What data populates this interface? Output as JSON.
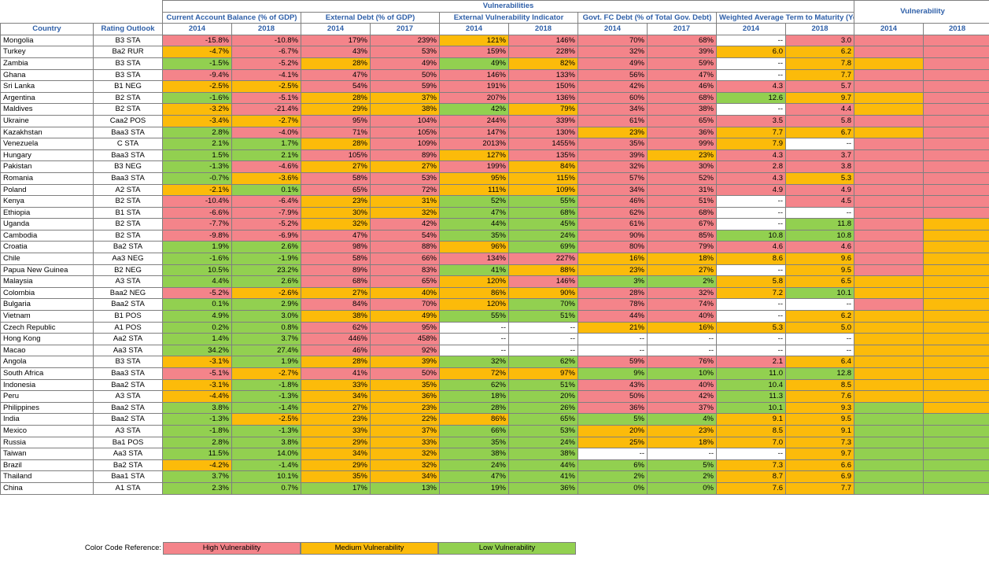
{
  "header": {
    "group_title": "Vulnerabilities",
    "vuln_title": "Vulnerability",
    "country_label": "Country",
    "rating_label": "Rating Outlook",
    "metrics": [
      {
        "name": "Current Account Balance (% of GDP)",
        "years": [
          "2014",
          "2018"
        ]
      },
      {
        "name": "External Debt (% of GDP)",
        "years": [
          "2014",
          "2017"
        ]
      },
      {
        "name": "External Vulnerability Indicator",
        "years": [
          "2014",
          "2018"
        ]
      },
      {
        "name": "Govt. FC Debt (% of Total Gov. Debt)",
        "years": [
          "2014",
          "2017"
        ]
      },
      {
        "name": "Weighted Average Term to Maturity (Years)",
        "years": [
          "2014",
          "2018"
        ]
      }
    ],
    "vuln_years": [
      "2014",
      "2018"
    ]
  },
  "colors": {
    "H": "#f4848a",
    "M": "#fcbb0a",
    "L": "#92d050",
    "W": "#ffffff"
  },
  "rows": [
    {
      "country": "Mongolia",
      "rating": "B3 STA",
      "vals": [
        "-15.8%",
        "-10.8%",
        "179%",
        "239%",
        "121%",
        "146%",
        "70%",
        "68%",
        "--",
        "3.0"
      ],
      "col": [
        "H",
        "H",
        "H",
        "H",
        "M",
        "H",
        "H",
        "H",
        "W",
        "H",
        "H",
        "H"
      ]
    },
    {
      "country": "Turkey",
      "rating": "Ba2 RUR",
      "vals": [
        "-4.7%",
        "-6.7%",
        "43%",
        "53%",
        "159%",
        "228%",
        "32%",
        "39%",
        "6.0",
        "6.2"
      ],
      "col": [
        "M",
        "H",
        "H",
        "H",
        "H",
        "H",
        "H",
        "H",
        "M",
        "M",
        "H",
        "H"
      ]
    },
    {
      "country": "Zambia",
      "rating": "B3 STA",
      "vals": [
        "-1.5%",
        "-5.2%",
        "28%",
        "49%",
        "49%",
        "82%",
        "49%",
        "59%",
        "--",
        "7.8"
      ],
      "col": [
        "L",
        "H",
        "M",
        "H",
        "L",
        "M",
        "H",
        "H",
        "W",
        "M",
        "M",
        "H"
      ]
    },
    {
      "country": "Ghana",
      "rating": "B3 STA",
      "vals": [
        "-9.4%",
        "-4.1%",
        "47%",
        "50%",
        "146%",
        "133%",
        "56%",
        "47%",
        "--",
        "7.7"
      ],
      "col": [
        "H",
        "H",
        "H",
        "H",
        "H",
        "H",
        "H",
        "H",
        "W",
        "M",
        "H",
        "H"
      ]
    },
    {
      "country": "Sri Lanka",
      "rating": "B1 NEG",
      "vals": [
        "-2.5%",
        "-2.5%",
        "54%",
        "59%",
        "191%",
        "150%",
        "42%",
        "46%",
        "4.3",
        "5.7"
      ],
      "col": [
        "M",
        "M",
        "H",
        "H",
        "H",
        "H",
        "H",
        "H",
        "H",
        "H",
        "H",
        "H"
      ]
    },
    {
      "country": "Argentina",
      "rating": "B2 STA",
      "vals": [
        "-1.6%",
        "-5.1%",
        "28%",
        "37%",
        "207%",
        "136%",
        "60%",
        "68%",
        "12.6",
        "9.7"
      ],
      "col": [
        "L",
        "H",
        "M",
        "M",
        "H",
        "H",
        "H",
        "H",
        "L",
        "M",
        "M",
        "H"
      ]
    },
    {
      "country": "Maldives",
      "rating": "B2 STA",
      "vals": [
        "-3.2%",
        "-21.4%",
        "29%",
        "38%",
        "42%",
        "79%",
        "34%",
        "38%",
        "--",
        "4.4"
      ],
      "col": [
        "M",
        "H",
        "M",
        "M",
        "L",
        "M",
        "H",
        "H",
        "W",
        "H",
        "M",
        "H"
      ]
    },
    {
      "country": "Ukraine",
      "rating": "Caa2 POS",
      "vals": [
        "-3.4%",
        "-2.7%",
        "95%",
        "104%",
        "244%",
        "339%",
        "61%",
        "65%",
        "3.5",
        "5.8"
      ],
      "col": [
        "M",
        "M",
        "H",
        "H",
        "H",
        "H",
        "H",
        "H",
        "H",
        "H",
        "H",
        "H"
      ]
    },
    {
      "country": "Kazakhstan",
      "rating": "Baa3 STA",
      "vals": [
        "2.8%",
        "-4.0%",
        "71%",
        "105%",
        "147%",
        "130%",
        "23%",
        "36%",
        "7.7",
        "6.7"
      ],
      "col": [
        "L",
        "H",
        "H",
        "H",
        "H",
        "H",
        "M",
        "H",
        "M",
        "M",
        "M",
        "H"
      ]
    },
    {
      "country": "Venezuela",
      "rating": "C STA",
      "vals": [
        "2.1%",
        "1.7%",
        "28%",
        "109%",
        "2013%",
        "1455%",
        "35%",
        "99%",
        "7.9",
        "--"
      ],
      "col": [
        "L",
        "L",
        "M",
        "H",
        "H",
        "H",
        "H",
        "H",
        "M",
        "W",
        "H",
        "H"
      ]
    },
    {
      "country": "Hungary",
      "rating": "Baa3 STA",
      "vals": [
        "1.5%",
        "2.1%",
        "105%",
        "89%",
        "127%",
        "135%",
        "39%",
        "23%",
        "4.3",
        "3.7"
      ],
      "col": [
        "L",
        "L",
        "H",
        "H",
        "M",
        "H",
        "H",
        "M",
        "H",
        "H",
        "H",
        "H"
      ]
    },
    {
      "country": "Pakistan",
      "rating": "B3 NEG",
      "vals": [
        "-1.3%",
        "-4.6%",
        "27%",
        "27%",
        "199%",
        "84%",
        "32%",
        "30%",
        "2.8",
        "3.8"
      ],
      "col": [
        "L",
        "H",
        "M",
        "M",
        "H",
        "M",
        "H",
        "H",
        "H",
        "H",
        "H",
        "H"
      ]
    },
    {
      "country": "Romania",
      "rating": "Baa3 STA",
      "vals": [
        "-0.7%",
        "-3.6%",
        "58%",
        "53%",
        "95%",
        "115%",
        "57%",
        "52%",
        "4.3",
        "5.3"
      ],
      "col": [
        "L",
        "M",
        "H",
        "H",
        "M",
        "M",
        "H",
        "H",
        "H",
        "M",
        "H",
        "H"
      ]
    },
    {
      "country": "Poland",
      "rating": "A2 STA",
      "vals": [
        "-2.1%",
        "0.1%",
        "65%",
        "72%",
        "111%",
        "109%",
        "34%",
        "31%",
        "4.9",
        "4.9"
      ],
      "col": [
        "M",
        "L",
        "H",
        "H",
        "M",
        "M",
        "H",
        "H",
        "H",
        "H",
        "H",
        "H"
      ]
    },
    {
      "country": "Kenya",
      "rating": "B2 STA",
      "vals": [
        "-10.4%",
        "-6.4%",
        "23%",
        "31%",
        "52%",
        "55%",
        "46%",
        "51%",
        "--",
        "4.5"
      ],
      "col": [
        "H",
        "H",
        "M",
        "M",
        "L",
        "L",
        "H",
        "H",
        "W",
        "H",
        "H",
        "H"
      ]
    },
    {
      "country": "Ethiopia",
      "rating": "B1 STA",
      "vals": [
        "-6.6%",
        "-7.9%",
        "30%",
        "32%",
        "47%",
        "68%",
        "62%",
        "68%",
        "--",
        "--"
      ],
      "col": [
        "H",
        "H",
        "M",
        "M",
        "L",
        "L",
        "H",
        "H",
        "W",
        "W",
        "H",
        "H"
      ]
    },
    {
      "country": "Uganda",
      "rating": "B2 STA",
      "vals": [
        "-7.7%",
        "-5.2%",
        "32%",
        "42%",
        "44%",
        "45%",
        "61%",
        "67%",
        "--",
        "11.8"
      ],
      "col": [
        "H",
        "H",
        "M",
        "H",
        "L",
        "L",
        "H",
        "H",
        "W",
        "L",
        "H",
        "M"
      ]
    },
    {
      "country": "Cambodia",
      "rating": "B2 STA",
      "vals": [
        "-9.8%",
        "-6.9%",
        "47%",
        "54%",
        "35%",
        "24%",
        "90%",
        "85%",
        "10.8",
        "10.8"
      ],
      "col": [
        "H",
        "H",
        "H",
        "H",
        "L",
        "L",
        "H",
        "H",
        "L",
        "L",
        "H",
        "M"
      ]
    },
    {
      "country": "Croatia",
      "rating": "Ba2 STA",
      "vals": [
        "1.9%",
        "2.6%",
        "98%",
        "88%",
        "96%",
        "69%",
        "80%",
        "79%",
        "4.6",
        "4.6"
      ],
      "col": [
        "L",
        "L",
        "H",
        "H",
        "M",
        "L",
        "H",
        "H",
        "H",
        "H",
        "H",
        "M"
      ]
    },
    {
      "country": "Chile",
      "rating": "Aa3 NEG",
      "vals": [
        "-1.6%",
        "-1.9%",
        "58%",
        "66%",
        "134%",
        "227%",
        "16%",
        "18%",
        "8.6",
        "9.6"
      ],
      "col": [
        "L",
        "L",
        "H",
        "H",
        "H",
        "H",
        "M",
        "M",
        "M",
        "M",
        "H",
        "M"
      ]
    },
    {
      "country": "Papua New Guinea",
      "rating": "B2 NEG",
      "vals": [
        "10.5%",
        "23.2%",
        "89%",
        "83%",
        "41%",
        "88%",
        "23%",
        "27%",
        "--",
        "9.5"
      ],
      "col": [
        "L",
        "L",
        "H",
        "H",
        "L",
        "M",
        "M",
        "M",
        "W",
        "M",
        "H",
        "M"
      ]
    },
    {
      "country": "Malaysia",
      "rating": "A3 STA",
      "vals": [
        "4.4%",
        "2.6%",
        "68%",
        "65%",
        "120%",
        "146%",
        "3%",
        "2%",
        "5.8",
        "6.5"
      ],
      "col": [
        "L",
        "L",
        "H",
        "H",
        "M",
        "H",
        "L",
        "L",
        "M",
        "M",
        "M",
        "M"
      ]
    },
    {
      "country": "Colombia",
      "rating": "Baa2 NEG",
      "vals": [
        "-5.2%",
        "-2.6%",
        "27%",
        "40%",
        "86%",
        "90%",
        "28%",
        "32%",
        "7.2",
        "10.1"
      ],
      "col": [
        "H",
        "M",
        "M",
        "M",
        "M",
        "M",
        "H",
        "H",
        "M",
        "L",
        "M",
        "M"
      ]
    },
    {
      "country": "Bulgaria",
      "rating": "Baa2 STA",
      "vals": [
        "0.1%",
        "2.9%",
        "84%",
        "70%",
        "120%",
        "70%",
        "78%",
        "74%",
        "--",
        "--"
      ],
      "col": [
        "L",
        "L",
        "H",
        "H",
        "M",
        "L",
        "H",
        "H",
        "W",
        "W",
        "H",
        "M"
      ]
    },
    {
      "country": "Vietnam",
      "rating": "B1 POS",
      "vals": [
        "4.9%",
        "3.0%",
        "38%",
        "49%",
        "55%",
        "51%",
        "44%",
        "40%",
        "--",
        "6.2"
      ],
      "col": [
        "L",
        "L",
        "M",
        "M",
        "L",
        "L",
        "H",
        "H",
        "W",
        "M",
        "M",
        "M"
      ]
    },
    {
      "country": "Czech Republic",
      "rating": "A1 POS",
      "vals": [
        "0.2%",
        "0.8%",
        "62%",
        "95%",
        "--",
        "--",
        "21%",
        "16%",
        "5.3",
        "5.0"
      ],
      "col": [
        "L",
        "L",
        "H",
        "H",
        "W",
        "W",
        "M",
        "M",
        "M",
        "M",
        "M",
        "M"
      ]
    },
    {
      "country": "Hong Kong",
      "rating": "Aa2 STA",
      "vals": [
        "1.4%",
        "3.7%",
        "446%",
        "458%",
        "--",
        "--",
        "--",
        "--",
        "--",
        "--"
      ],
      "col": [
        "L",
        "L",
        "H",
        "H",
        "W",
        "W",
        "W",
        "W",
        "W",
        "W",
        "M",
        "M"
      ]
    },
    {
      "country": "Macao",
      "rating": "Aa3 STA",
      "vals": [
        "34.2%",
        "27.4%",
        "46%",
        "92%",
        "--",
        "--",
        "--",
        "--",
        "--",
        "--"
      ],
      "col": [
        "L",
        "L",
        "H",
        "H",
        "W",
        "W",
        "W",
        "W",
        "W",
        "W",
        "M",
        "M"
      ]
    },
    {
      "country": "Angola",
      "rating": "B3 STA",
      "vals": [
        "-3.1%",
        "1.9%",
        "28%",
        "39%",
        "32%",
        "62%",
        "59%",
        "76%",
        "2.1",
        "6.4"
      ],
      "col": [
        "M",
        "L",
        "M",
        "M",
        "L",
        "L",
        "H",
        "H",
        "H",
        "M",
        "M",
        "M"
      ]
    },
    {
      "country": "South Africa",
      "rating": "Baa3 STA",
      "vals": [
        "-5.1%",
        "-2.7%",
        "41%",
        "50%",
        "72%",
        "97%",
        "9%",
        "10%",
        "11.0",
        "12.8"
      ],
      "col": [
        "H",
        "M",
        "H",
        "H",
        "M",
        "M",
        "L",
        "L",
        "L",
        "L",
        "M",
        "M"
      ]
    },
    {
      "country": "Indonesia",
      "rating": "Baa2 STA",
      "vals": [
        "-3.1%",
        "-1.8%",
        "33%",
        "35%",
        "62%",
        "51%",
        "43%",
        "40%",
        "10.4",
        "8.5"
      ],
      "col": [
        "M",
        "L",
        "M",
        "M",
        "L",
        "L",
        "H",
        "H",
        "L",
        "M",
        "M",
        "M"
      ]
    },
    {
      "country": "Peru",
      "rating": "A3 STA",
      "vals": [
        "-4.4%",
        "-1.3%",
        "34%",
        "36%",
        "18%",
        "20%",
        "50%",
        "42%",
        "11.3",
        "7.6"
      ],
      "col": [
        "M",
        "L",
        "M",
        "M",
        "L",
        "L",
        "H",
        "H",
        "L",
        "M",
        "M",
        "M"
      ]
    },
    {
      "country": "Philippines",
      "rating": "Baa2 STA",
      "vals": [
        "3.8%",
        "-1.4%",
        "27%",
        "23%",
        "28%",
        "26%",
        "36%",
        "37%",
        "10.1",
        "9.3"
      ],
      "col": [
        "L",
        "L",
        "M",
        "M",
        "L",
        "L",
        "H",
        "H",
        "L",
        "M",
        "L",
        "M"
      ]
    },
    {
      "country": "India",
      "rating": "Baa2 STA",
      "vals": [
        "-1.3%",
        "-2.5%",
        "23%",
        "22%",
        "86%",
        "65%",
        "5%",
        "4%",
        "9.1",
        "9.5"
      ],
      "col": [
        "L",
        "M",
        "M",
        "M",
        "M",
        "L",
        "L",
        "L",
        "M",
        "M",
        "L",
        "L"
      ]
    },
    {
      "country": "Mexico",
      "rating": "A3 STA",
      "vals": [
        "-1.8%",
        "-1.3%",
        "33%",
        "37%",
        "66%",
        "53%",
        "20%",
        "23%",
        "8.5",
        "9.1"
      ],
      "col": [
        "L",
        "L",
        "M",
        "M",
        "L",
        "L",
        "M",
        "M",
        "M",
        "M",
        "L",
        "L"
      ]
    },
    {
      "country": "Russia",
      "rating": "Ba1 POS",
      "vals": [
        "2.8%",
        "3.8%",
        "29%",
        "33%",
        "35%",
        "24%",
        "25%",
        "18%",
        "7.0",
        "7.3"
      ],
      "col": [
        "L",
        "L",
        "M",
        "M",
        "L",
        "L",
        "M",
        "M",
        "M",
        "M",
        "L",
        "L"
      ]
    },
    {
      "country": "Taiwan",
      "rating": "Aa3 STA",
      "vals": [
        "11.5%",
        "14.0%",
        "34%",
        "32%",
        "38%",
        "38%",
        "--",
        "--",
        "--",
        "9.7"
      ],
      "col": [
        "L",
        "L",
        "M",
        "M",
        "L",
        "L",
        "W",
        "W",
        "W",
        "M",
        "L",
        "L"
      ]
    },
    {
      "country": "Brazil",
      "rating": "Ba2 STA",
      "vals": [
        "-4.2%",
        "-1.4%",
        "29%",
        "32%",
        "24%",
        "44%",
        "6%",
        "5%",
        "7.3",
        "6.6"
      ],
      "col": [
        "M",
        "L",
        "M",
        "M",
        "L",
        "L",
        "L",
        "L",
        "M",
        "M",
        "L",
        "L"
      ]
    },
    {
      "country": "Thailand",
      "rating": "Baa1 STA",
      "vals": [
        "3.7%",
        "10.1%",
        "35%",
        "34%",
        "47%",
        "41%",
        "2%",
        "2%",
        "8.7",
        "6.9"
      ],
      "col": [
        "L",
        "L",
        "M",
        "M",
        "L",
        "L",
        "L",
        "L",
        "M",
        "M",
        "L",
        "L"
      ]
    },
    {
      "country": "China",
      "rating": "A1 STA",
      "vals": [
        "2.3%",
        "0.7%",
        "17%",
        "13%",
        "19%",
        "36%",
        "0%",
        "0%",
        "7.6",
        "7.7"
      ],
      "col": [
        "L",
        "L",
        "L",
        "L",
        "L",
        "L",
        "L",
        "L",
        "M",
        "M",
        "L",
        "L"
      ]
    }
  ],
  "legend": {
    "label": "Color Code Reference:",
    "items": [
      {
        "text": "High Vulnerability",
        "color": "#f4848a"
      },
      {
        "text": "Medium Vulnerability",
        "color": "#fcbb0a"
      },
      {
        "text": "Low Vulnerability",
        "color": "#92d050"
      }
    ]
  }
}
